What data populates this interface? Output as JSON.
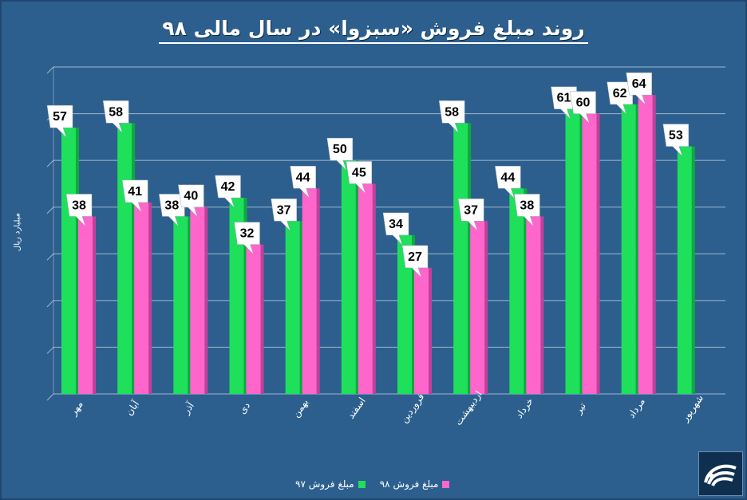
{
  "title": "روند مبلغ فروش «سبزوا» در سال مالی ۹۸",
  "colors": {
    "background": "#2c5f8e",
    "series_97": "#1ee05a",
    "series_98": "#ff66cc",
    "grid": "#ffffff"
  },
  "legend": {
    "series_97_label": "مبلغ فروش ۹۷",
    "series_98_label": "مبلغ فروش ۹۸"
  },
  "logo": {
    "icon": "company-logo-icon"
  },
  "chart_data": {
    "type": "bar",
    "title": "روند مبلغ فروش «سبزوا» در سال مالی ۹۸",
    "xlabel": "",
    "ylabel": "میلیارد ریال",
    "categories": [
      "مهر",
      "آبان",
      "آذر",
      "دی",
      "بهمن",
      "اسفند",
      "فروردین",
      "اردیبهشت",
      "خرداد",
      "تیر",
      "مرداد",
      "شهریور"
    ],
    "series": [
      {
        "name": "مبلغ فروش ۹۷",
        "values": [
          57,
          58,
          38,
          42,
          37,
          50,
          34,
          58,
          44,
          61,
          62,
          53
        ]
      },
      {
        "name": "مبلغ فروش ۹۸",
        "values": [
          38,
          41,
          40,
          32,
          44,
          45,
          27,
          37,
          38,
          60,
          64,
          null
        ]
      }
    ],
    "ylim": [
      0,
      70
    ],
    "grid": true,
    "legend_position": "bottom"
  }
}
